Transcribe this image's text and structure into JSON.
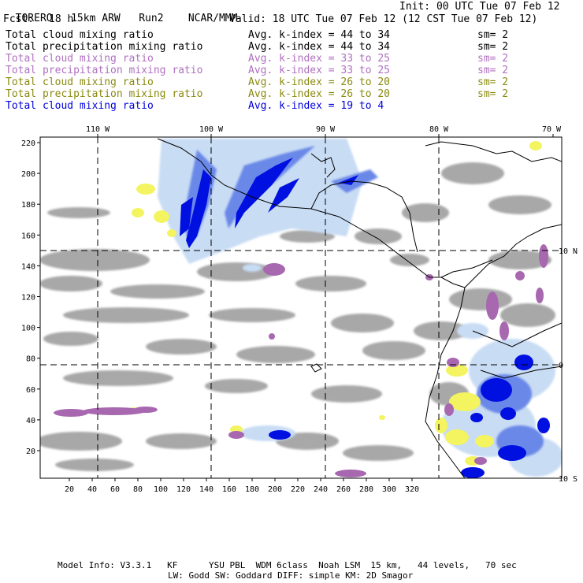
{
  "header": {
    "model": "TORERO",
    "resolution": "15km ARW",
    "run": "Run2",
    "org": "NCAR/MMM",
    "init": "Init: 00 UTC Tue 07 Feb 12",
    "fcst_label": "Fcst:",
    "fcst_value": "18 h",
    "valid": "Valid: 18 UTC Tue 07 Feb 12 (12 CST Tue 07 Feb 12)"
  },
  "legend": [
    {
      "name": "Total cloud mixing ratio",
      "avg": "Avg. k-index = 44 to 34",
      "sm": "sm= 2",
      "color": "#000000"
    },
    {
      "name": "Total precipitation mixing ratio",
      "avg": "Avg. k-index = 44 to 34",
      "sm": "sm= 2",
      "color": "#000000"
    },
    {
      "name": "Total cloud mixing ratio",
      "avg": "Avg. k-index = 33 to 25",
      "sm": "sm= 2",
      "color": "#b070c0"
    },
    {
      "name": "Total precipitation mixing ratio",
      "avg": "Avg. k-index = 33 to 25",
      "sm": "sm= 2",
      "color": "#b070c0"
    },
    {
      "name": "Total cloud mixing ratio",
      "avg": "Avg. k-index = 26 to 20",
      "sm": "sm= 2",
      "color": "#8a8a10"
    },
    {
      "name": "Total precipitation mixing ratio",
      "avg": "Avg. k-index = 26 to 20",
      "sm": "sm= 2",
      "color": "#8a8a10"
    },
    {
      "name": "Total cloud mixing ratio",
      "avg": "Avg. k-index = 19 to 4",
      "sm": "",
      "color": "#0000dd"
    }
  ],
  "map": {
    "lon_labels": [
      "110 W",
      "100 W",
      "90 W",
      "80 W",
      "70 W"
    ],
    "lat_labels": [
      "10 N",
      "0",
      "10 S"
    ],
    "x_ticks": [
      "20",
      "40",
      "60",
      "80",
      "100",
      "120",
      "140",
      "160",
      "180",
      "200",
      "220",
      "240",
      "260",
      "280",
      "300",
      "320"
    ],
    "y_ticks": [
      "220",
      "200",
      "180",
      "160",
      "140",
      "120",
      "100",
      "80",
      "60",
      "40",
      "20"
    ],
    "colors": {
      "gray": "#a8a8a8",
      "purple": "#a868b0",
      "yellow": "#f4f460",
      "light_blue": "#c8dcf4",
      "blue": "#0010e0",
      "mid_blue": "#6a88e8"
    }
  },
  "footer": {
    "line1": "Model Info: V3.3.1   KF      YSU PBL  WDM 6class  Noah LSM  15 km,   44 levels,   70 sec",
    "line2": "LW: Godd SW: Goddard DIFF: simple KM: 2D Smagor"
  }
}
